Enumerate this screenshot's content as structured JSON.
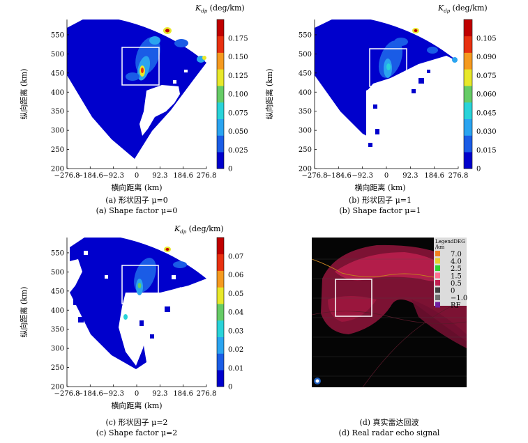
{
  "chart_data": [
    {
      "type": "heatmap",
      "panel": "a",
      "xlabel": "横向距离 (km)",
      "ylabel": "纵向距离 (km)",
      "x_ticks": [
        "−276.8",
        "−184.6",
        "−92.3",
        "0",
        "92.3",
        "184.6",
        "276.8"
      ],
      "y_ticks": [
        "200",
        "250",
        "300",
        "350",
        "400",
        "450",
        "500",
        "550"
      ],
      "xlim": [
        -276.8,
        276.8
      ],
      "ylim": [
        200,
        590
      ],
      "colorbar_label_main": "K",
      "colorbar_label_sub": "dp",
      "colorbar_label_unit": " (deg/km)",
      "colorbar_ticks": [
        "0",
        "0.025",
        "0.050",
        "0.075",
        "0.100",
        "0.125",
        "0.150",
        "0.175"
      ],
      "colorbar_colors": [
        "#0000cc",
        "#1a5ce6",
        "#2aa4f0",
        "#29d3d9",
        "#66cc66",
        "#e8e82a",
        "#f59a1f",
        "#e83010",
        "#c00000"
      ],
      "caption_cn": "(a) 形状因子 μ=0",
      "caption_en": "(a) Shape factor μ=0",
      "box": {
        "x0": -35,
        "x1": 55,
        "y0": 415,
        "y1": 510
      }
    },
    {
      "type": "heatmap",
      "panel": "b",
      "xlabel": "横向距离 (km)",
      "ylabel": "纵向距离 (km)",
      "x_ticks": [
        "−276.8",
        "−184.6",
        "−92.3",
        "0",
        "92.3",
        "184.6",
        "276.8"
      ],
      "y_ticks": [
        "200",
        "250",
        "300",
        "350",
        "400",
        "450",
        "500",
        "550"
      ],
      "xlim": [
        -276.8,
        276.8
      ],
      "ylim": [
        200,
        590
      ],
      "colorbar_label_main": "K",
      "colorbar_label_sub": "dp",
      "colorbar_label_unit": " (deg/km)",
      "colorbar_ticks": [
        "0",
        "0.015",
        "0.030",
        "0.045",
        "0.060",
        "0.075",
        "0.090",
        "0.105"
      ],
      "colorbar_colors": [
        "#0000cc",
        "#1a5ce6",
        "#2aa4f0",
        "#29d3d9",
        "#66cc66",
        "#e8e82a",
        "#f59a1f",
        "#e83010",
        "#c00000"
      ],
      "caption_cn": "(b) 形状因子 μ=1",
      "caption_en": "(b) Shape factor μ=1",
      "box": {
        "x0": -15,
        "x1": 80,
        "y0": 415,
        "y1": 510
      }
    },
    {
      "type": "heatmap",
      "panel": "c",
      "xlabel": "横向距离 (km)",
      "ylabel": "纵向距离 (km)",
      "x_ticks": [
        "−276.8",
        "−184.6",
        "−92.3",
        "0",
        "92.3",
        "184.6",
        "276.8"
      ],
      "y_ticks": [
        "200",
        "250",
        "300",
        "350",
        "400",
        "450",
        "500",
        "550"
      ],
      "xlim": [
        -276.8,
        276.8
      ],
      "ylim": [
        200,
        590
      ],
      "colorbar_label_main": "K",
      "colorbar_label_sub": "dp",
      "colorbar_label_unit": " (deg/km)",
      "colorbar_ticks": [
        "0",
        "0.01",
        "0.02",
        "0.03",
        "0.04",
        "0.05",
        "0.06",
        "0.07"
      ],
      "colorbar_colors": [
        "#0000cc",
        "#1a5ce6",
        "#2aa4f0",
        "#29d3d9",
        "#66cc66",
        "#e8e82a",
        "#f59a1f",
        "#e83010",
        "#c00000"
      ],
      "caption_cn": "(c) 形状因子 μ=2",
      "caption_en": "(c) Shape factor μ=2",
      "box": {
        "x0": -35,
        "x1": 50,
        "y0": 420,
        "y1": 515
      }
    }
  ],
  "radar_panel": {
    "legend_title": "LegendDEG",
    "legend_unit": "/km",
    "legend_items": [
      {
        "label": "7.0",
        "color": "#f08020"
      },
      {
        "label": "4.0",
        "color": "#e8d030"
      },
      {
        "label": "2.5",
        "color": "#30d030"
      },
      {
        "label": "1.5",
        "color": "#ff7090"
      },
      {
        "label": "0.5",
        "color": "#c02050"
      },
      {
        "label": "0",
        "color": "#404040"
      },
      {
        "label": "−1.0",
        "color": "#707070"
      },
      {
        "label": "RF",
        "color": "#7020a0"
      }
    ],
    "caption_cn": "(d) 真实雷达回波",
    "caption_en": "(d) Real radar echo signal"
  }
}
